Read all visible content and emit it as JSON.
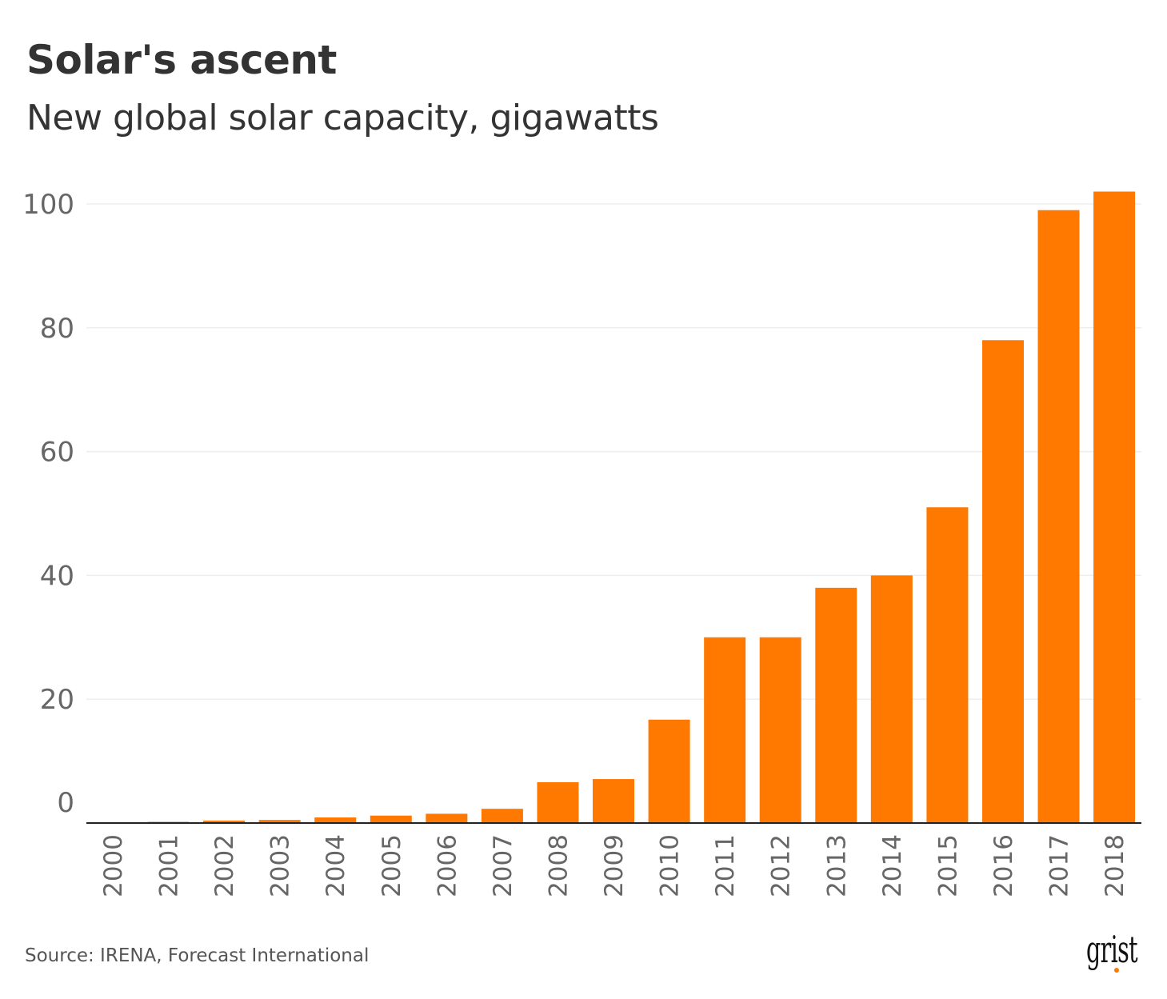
{
  "chart_data": {
    "type": "bar",
    "title": "Solar's ascent",
    "subtitle": "New global solar capacity, gigawatts",
    "source": "Source: IRENA, Forecast International",
    "logo": "grist",
    "xlabel": "",
    "ylabel": "",
    "ylim": [
      0,
      100
    ],
    "yticks": [
      0,
      20,
      40,
      60,
      80,
      100
    ],
    "grid": true,
    "color": "#ff7800",
    "categories": [
      "2000",
      "2001",
      "2002",
      "2003",
      "2004",
      "2005",
      "2006",
      "2007",
      "2008",
      "2009",
      "2010",
      "2011",
      "2012",
      "2013",
      "2014",
      "2015",
      "2016",
      "2017",
      "2018"
    ],
    "values": [
      0.1,
      0.2,
      0.4,
      0.5,
      0.9,
      1.2,
      1.5,
      2.3,
      6.6,
      7.1,
      16.7,
      30,
      30,
      38,
      40,
      51,
      78,
      99,
      102
    ]
  }
}
